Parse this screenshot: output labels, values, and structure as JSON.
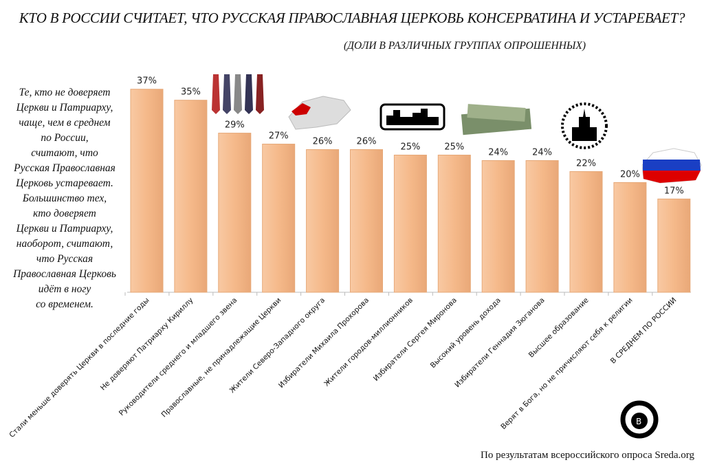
{
  "title": "КТО В РОССИИ СЧИТАЕТ, ЧТО РУССКАЯ ПРАВОСЛАВНАЯ ЦЕРКОВЬ КОНСЕРВАТИНА И УСТАРЕВАЕТ?",
  "subtitle": "(ДОЛИ В РАЗЛИЧНЫХ ГРУППАХ ОПРОШЕННЫХ)",
  "note_lines": [
    "Те, кто не доверяет",
    "Церкви и Патриарху,",
    "чаще, чем в среднем",
    "по России,",
    "считают, что",
    "Русская Православная",
    "Церковь устаревает.",
    "Большинство тех,",
    "кто доверяет",
    "Церкви и Патриарху,",
    "наоборот, считают,",
    "что Русская",
    "Православная Церковь",
    "идёт в ногу",
    "со временем."
  ],
  "source": "По результатам всероссийского опроса Sreda.org",
  "logo_text": "SREDA",
  "chart_data": {
    "type": "bar",
    "categories": [
      "Стали меньше доверять Церкви в последние годы",
      "Не доверяют Патриарху Кириллу",
      "Руководители среднего и младшего звена",
      "Православные, не принадлежащие Церкви",
      "Жители Северо-Западного округа",
      "Избиратели Михаила Прохорова",
      "Жители городов-миллионников",
      "Избиратели Сергея Миронова",
      "Высокий уровень дохода",
      "Избиратели Геннадия Зюганова",
      "Высшее образование",
      "Верят в Бога, но не причисляют себя к религии",
      "В СРЕДНЕМ ПО РОССИИ"
    ],
    "values": [
      37,
      35,
      29,
      27,
      26,
      26,
      25,
      25,
      24,
      24,
      22,
      20,
      17
    ],
    "data_labels": [
      "37%",
      "35%",
      "29%",
      "27%",
      "26%",
      "26%",
      "25%",
      "25%",
      "24%",
      "24%",
      "22%",
      "20%",
      "17%"
    ],
    "bar_color": "#f5b98a",
    "grid": false
  }
}
